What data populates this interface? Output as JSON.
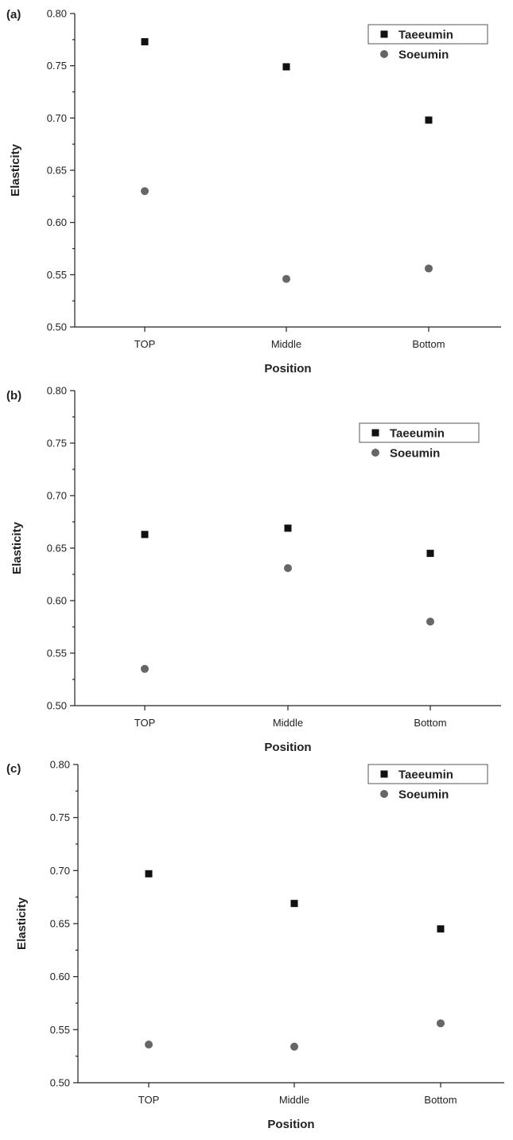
{
  "chart_data": [
    {
      "type": "scatter",
      "panel_label": "(a)",
      "categories": [
        "TOP",
        "Middle",
        "Bottom"
      ],
      "series": [
        {
          "name": "Taeeumin",
          "marker": "square",
          "color": "#111111",
          "values": [
            0.773,
            0.749,
            0.698
          ]
        },
        {
          "name": "Soeumin",
          "marker": "circle",
          "color": "#666666",
          "values": [
            0.63,
            0.546,
            0.556
          ]
        }
      ],
      "xlabel": "Position",
      "ylabel": "Elasticity",
      "ylim": [
        0.5,
        0.8
      ],
      "yticks": [
        "0.50",
        "0.55",
        "0.60",
        "0.65",
        "0.70",
        "0.75",
        "0.80"
      ],
      "grid": false,
      "legend_position": "top-right"
    },
    {
      "type": "scatter",
      "panel_label": "(b)",
      "categories": [
        "TOP",
        "Middle",
        "Bottom"
      ],
      "series": [
        {
          "name": "Taeeumin",
          "marker": "square",
          "color": "#111111",
          "values": [
            0.663,
            0.669,
            0.645
          ]
        },
        {
          "name": "Soeumin",
          "marker": "circle",
          "color": "#666666",
          "values": [
            0.535,
            0.631,
            0.58
          ]
        }
      ],
      "xlabel": "Position",
      "ylabel": "Elasticity",
      "ylim": [
        0.5,
        0.8
      ],
      "yticks": [
        "0.50",
        "0.55",
        "0.60",
        "0.65",
        "0.70",
        "0.75",
        "0.80"
      ],
      "grid": false,
      "legend_position": "top-right"
    },
    {
      "type": "scatter",
      "panel_label": "(c)",
      "categories": [
        "TOP",
        "Middle",
        "Bottom"
      ],
      "series": [
        {
          "name": "Taeeumin",
          "marker": "square",
          "color": "#111111",
          "values": [
            0.697,
            0.669,
            0.645
          ]
        },
        {
          "name": "Soeumin",
          "marker": "circle",
          "color": "#666666",
          "values": [
            0.536,
            0.534,
            0.556
          ]
        }
      ],
      "xlabel": "Position",
      "ylabel": "Elasticity",
      "ylim": [
        0.5,
        0.8
      ],
      "yticks": [
        "0.50",
        "0.55",
        "0.60",
        "0.65",
        "0.70",
        "0.75",
        "0.80"
      ],
      "grid": false,
      "legend_position": "top-right"
    }
  ]
}
